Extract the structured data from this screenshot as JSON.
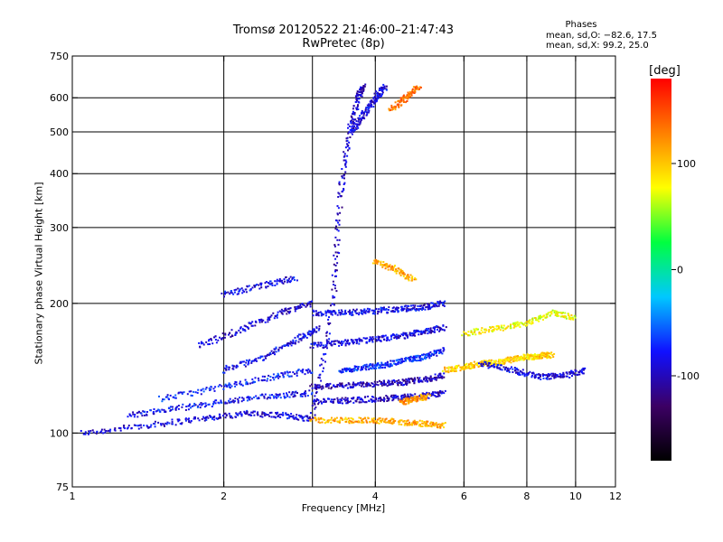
{
  "chart_data": {
    "type": "scatter",
    "title": "Tromsø 20120522 21:46:00–21:47:43",
    "subtitle": "RwPretec (8p)",
    "xlabel": "Frequency [MHz]",
    "ylabel": "Stationary phase Virtual Height [km]",
    "x_scale": "log",
    "y_scale": "log",
    "xlim": [
      1,
      12
    ],
    "ylim": [
      75,
      750
    ],
    "x_ticks": [
      1,
      2,
      4,
      6,
      8,
      10,
      12
    ],
    "x_tick_labels": [
      "1",
      "2",
      "4",
      "6",
      "8",
      "10",
      "12"
    ],
    "x_gridlines": [
      2,
      3,
      4,
      6,
      8,
      10
    ],
    "y_ticks": [
      75,
      100,
      200,
      300,
      400,
      500,
      600,
      750
    ],
    "y_tick_labels": [
      "75",
      "100",
      "200",
      "300",
      "400",
      "500",
      "600",
      "750"
    ],
    "y_gridlines": [
      100,
      200,
      300,
      400,
      500,
      600
    ],
    "grid": true,
    "colorbar": {
      "label": "[deg]",
      "ticks": [
        100,
        0,
        -100
      ],
      "tick_labels": [
        "100",
        "0",
        "-100"
      ],
      "range": [
        -180,
        180
      ],
      "colors": [
        "#000000",
        "#3c0064",
        "#1010ff",
        "#00c8ff",
        "#00ff40",
        "#ffff00",
        "#ff8000",
        "#ff0000"
      ]
    },
    "annotation": {
      "title": "Phases",
      "line_o": "mean, sd,O: −82.6, 17.5",
      "line_x": "mean, sd,X:  99.2, 25.0"
    },
    "traces": [
      {
        "x": [
          1.05,
          1.4,
          1.8,
          2.2,
          2.6,
          3.0
        ],
        "y": [
          100,
          104,
          108,
          111,
          110,
          108
        ],
        "phase": -90
      },
      {
        "x": [
          1.3,
          1.6,
          2.0,
          2.5,
          3.0
        ],
        "y": [
          110,
          114,
          118,
          122,
          124
        ],
        "phase": -80
      },
      {
        "x": [
          1.5,
          2.0,
          2.5,
          3.0
        ],
        "y": [
          120,
          128,
          135,
          140
        ],
        "phase": -75
      },
      {
        "x": [
          2.0,
          2.4,
          2.8,
          3.1
        ],
        "y": [
          140,
          150,
          165,
          175
        ],
        "phase": -85
      },
      {
        "x": [
          1.8,
          2.2,
          2.6,
          3.0
        ],
        "y": [
          160,
          175,
          190,
          200
        ],
        "phase": -95
      },
      {
        "x": [
          2.0,
          2.4,
          2.8
        ],
        "y": [
          210,
          220,
          230
        ],
        "phase": -85
      },
      {
        "x": [
          3.0,
          3.5,
          4.0,
          4.5,
          5.0,
          5.5
        ],
        "y": [
          107,
          107,
          107,
          106,
          105,
          104
        ],
        "phase": 110
      },
      {
        "x": [
          3.0,
          3.3,
          3.4,
          3.55,
          3.7,
          3.8
        ],
        "y": [
          110,
          200,
          350,
          500,
          600,
          640
        ],
        "phase": -95
      },
      {
        "x": [
          3.6,
          3.8,
          4.0,
          4.2
        ],
        "y": [
          500,
          550,
          600,
          640
        ],
        "phase": -90
      },
      {
        "x": [
          4.3,
          4.6,
          4.9
        ],
        "y": [
          560,
          600,
          640
        ],
        "phase": 130
      },
      {
        "x": [
          3.0,
          3.5,
          4.0,
          4.5,
          5.0,
          5.5
        ],
        "y": [
          128,
          129,
          130,
          131,
          133,
          136
        ],
        "phase": -100
      },
      {
        "x": [
          3.0,
          3.5,
          4.0,
          4.5,
          5.0,
          5.5
        ],
        "y": [
          118,
          119,
          120,
          121,
          122,
          124
        ],
        "phase": -95
      },
      {
        "x": [
          3.4,
          3.8,
          4.2,
          4.6,
          5.0,
          5.5
        ],
        "y": [
          140,
          142,
          144,
          148,
          150,
          156
        ],
        "phase": -70
      },
      {
        "x": [
          3.0,
          3.5,
          4.0,
          4.5,
          5.0,
          5.5
        ],
        "y": [
          160,
          162,
          165,
          168,
          172,
          176
        ],
        "phase": -90
      },
      {
        "x": [
          3.0,
          3.5,
          4.0,
          4.5,
          5.0,
          5.5
        ],
        "y": [
          190,
          190,
          192,
          194,
          196,
          200
        ],
        "phase": -85
      },
      {
        "x": [
          4.0,
          4.4,
          4.8
        ],
        "y": [
          250,
          240,
          225
        ],
        "phase": 110
      },
      {
        "x": [
          4.5,
          4.8,
          5.1
        ],
        "y": [
          118,
          120,
          122
        ],
        "phase": 120
      },
      {
        "x": [
          5.5,
          6.0,
          6.5,
          7.0,
          7.5,
          8.0,
          8.5,
          9.0
        ],
        "y": [
          140,
          142,
          145,
          146,
          148,
          150,
          151,
          152
        ],
        "phase": 95
      },
      {
        "x": [
          6.5,
          7.5,
          8.5,
          9.5,
          10.5
        ],
        "y": [
          145,
          140,
          135,
          136,
          140
        ],
        "phase": -90
      },
      {
        "x": [
          6.0,
          7.0,
          8.0,
          9.0,
          10.0
        ],
        "y": [
          170,
          175,
          180,
          190,
          185
        ],
        "phase": 80
      }
    ]
  }
}
